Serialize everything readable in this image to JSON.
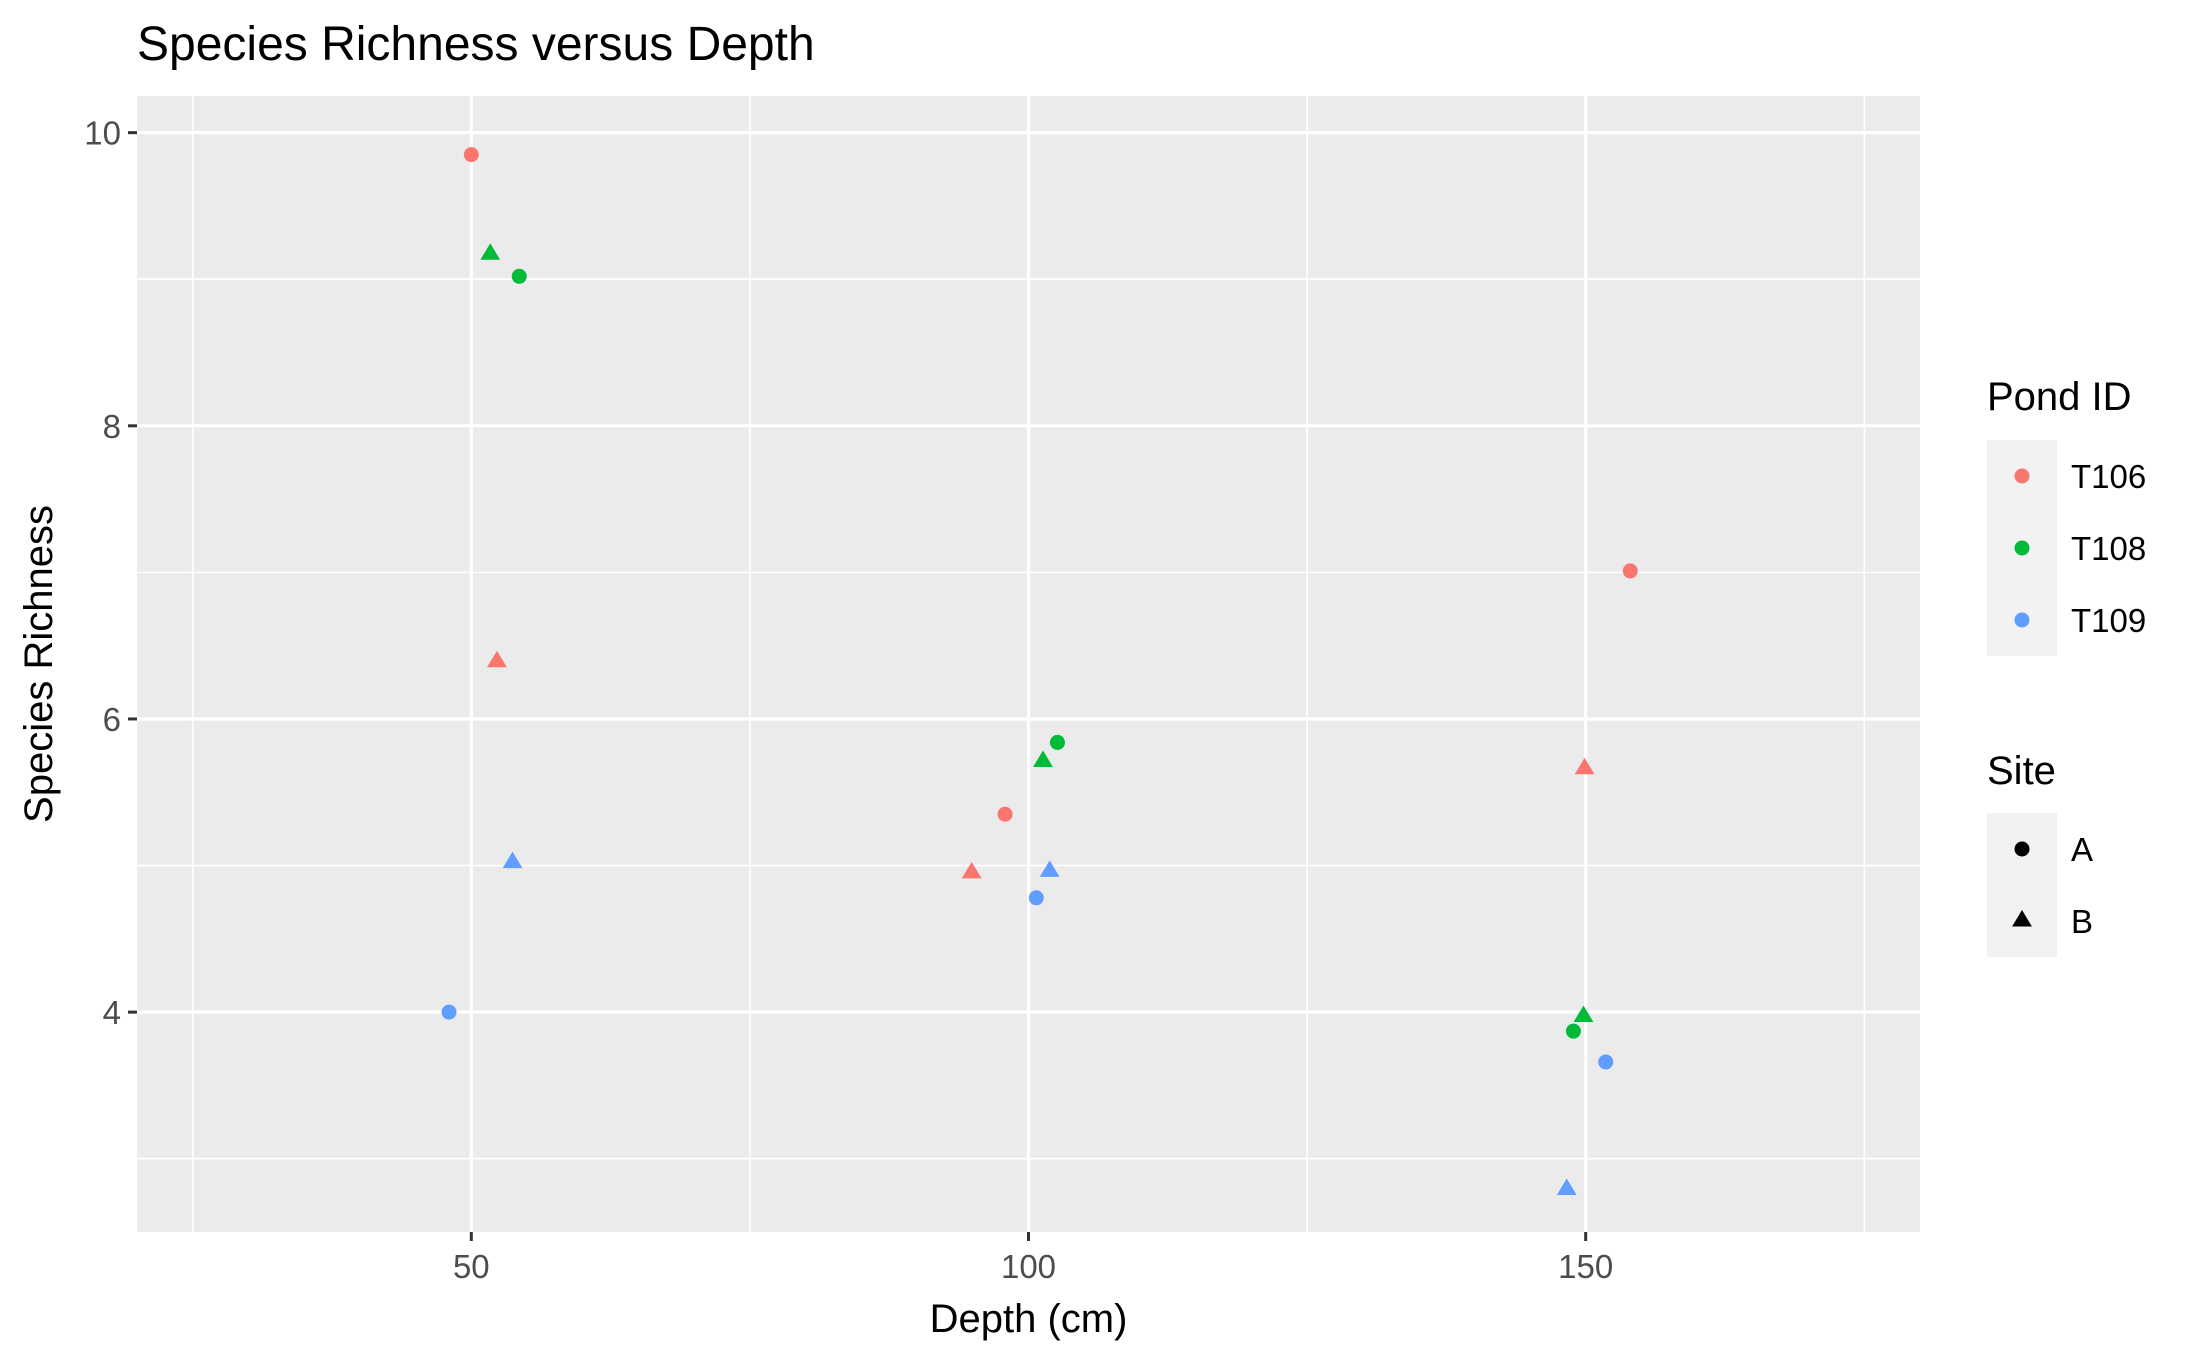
{
  "chart_data": {
    "type": "scatter",
    "title": "Species Richness versus Depth",
    "xlabel": "Depth (cm)",
    "ylabel": "Species Richness",
    "xlim": [
      20,
      180
    ],
    "ylim": [
      2.5,
      10.25
    ],
    "x_ticks": [
      50,
      100,
      150
    ],
    "y_ticks": [
      4,
      6,
      8,
      10
    ],
    "x_tick_labels": [
      "50",
      "100",
      "150"
    ],
    "y_tick_labels": [
      "4",
      "6",
      "8",
      "10"
    ],
    "grid": true,
    "background_color": "#ebebeb",
    "grid_color": "#ffffff",
    "legend_position": "right",
    "color_legend": {
      "title": "Pond ID",
      "entries": [
        {
          "label": "T106",
          "color": "#f8766d"
        },
        {
          "label": "T108",
          "color": "#00ba38"
        },
        {
          "label": "T109",
          "color": "#619cff"
        }
      ]
    },
    "shape_legend": {
      "title": "Site",
      "entries": [
        {
          "label": "A",
          "shape": "circle"
        },
        {
          "label": "B",
          "shape": "triangle"
        }
      ]
    },
    "points": [
      {
        "x": 50.0,
        "y": 9.85,
        "pond": "T106",
        "site": "A"
      },
      {
        "x": 51.7,
        "y": 9.17,
        "pond": "T108",
        "site": "B"
      },
      {
        "x": 54.3,
        "y": 9.02,
        "pond": "T108",
        "site": "A"
      },
      {
        "x": 52.3,
        "y": 6.39,
        "pond": "T106",
        "site": "B"
      },
      {
        "x": 53.7,
        "y": 5.02,
        "pond": "T109",
        "site": "B"
      },
      {
        "x": 48.0,
        "y": 4.0,
        "pond": "T109",
        "site": "A"
      },
      {
        "x": 97.9,
        "y": 5.35,
        "pond": "T106",
        "site": "A"
      },
      {
        "x": 94.9,
        "y": 4.95,
        "pond": "T106",
        "site": "B"
      },
      {
        "x": 101.3,
        "y": 5.71,
        "pond": "T108",
        "site": "B"
      },
      {
        "x": 102.6,
        "y": 5.84,
        "pond": "T108",
        "site": "A"
      },
      {
        "x": 100.7,
        "y": 4.78,
        "pond": "T109",
        "site": "A"
      },
      {
        "x": 101.9,
        "y": 4.96,
        "pond": "T109",
        "site": "B"
      },
      {
        "x": 154.0,
        "y": 7.01,
        "pond": "T106",
        "site": "A"
      },
      {
        "x": 149.9,
        "y": 5.66,
        "pond": "T106",
        "site": "B"
      },
      {
        "x": 148.9,
        "y": 3.87,
        "pond": "T108",
        "site": "A"
      },
      {
        "x": 149.8,
        "y": 3.97,
        "pond": "T108",
        "site": "B"
      },
      {
        "x": 151.8,
        "y": 3.66,
        "pond": "T109",
        "site": "A"
      },
      {
        "x": 148.3,
        "y": 2.79,
        "pond": "T109",
        "site": "B"
      }
    ]
  }
}
